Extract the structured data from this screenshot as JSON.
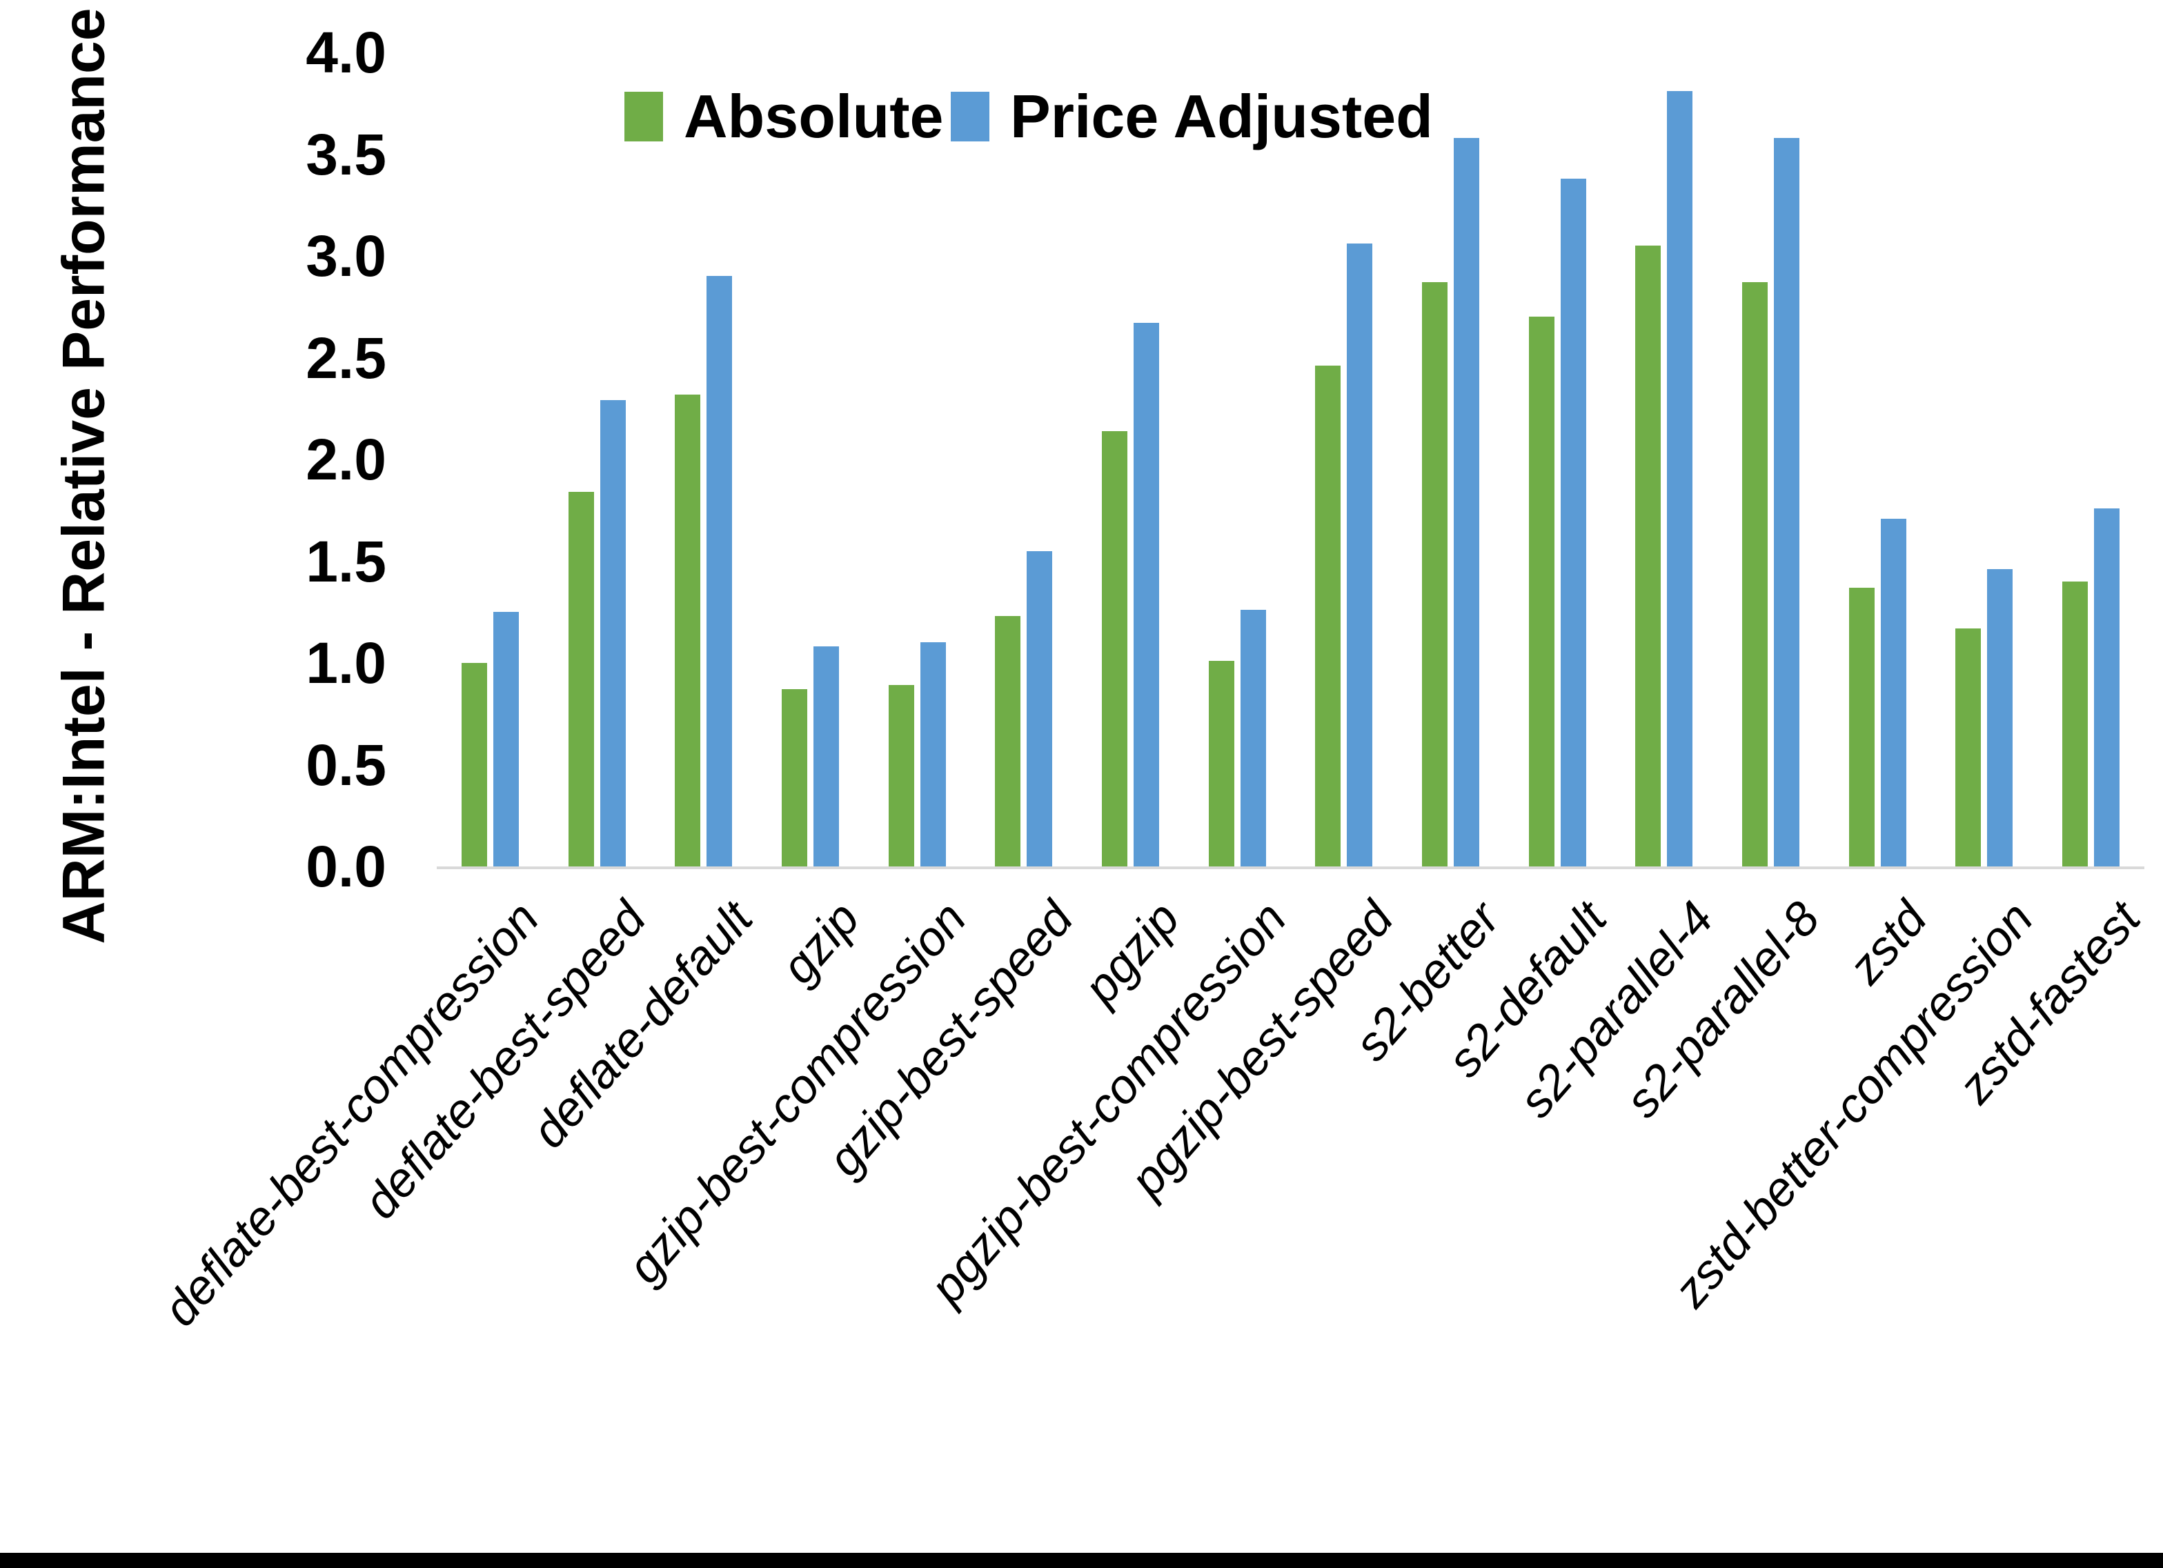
{
  "figure": {
    "bottom_border_color": "#000000",
    "axis_line_color": "#d9d9d9",
    "background": "#ffffff"
  },
  "legend": {
    "absolute_label": "Absolute",
    "price_adjusted_label": "Price Adjusted"
  },
  "chart_data": {
    "type": "bar",
    "title": "",
    "xlabel": "",
    "ylabel": "ARM:Intel - Relative Performance",
    "ylim": [
      0.0,
      4.0
    ],
    "ytick_step": 0.5,
    "ytick_labels": [
      "0.0",
      "0.5",
      "1.0",
      "1.5",
      "2.0",
      "2.5",
      "3.0",
      "3.5",
      "4.0"
    ],
    "grid": false,
    "legend_position": "top-center",
    "categories": [
      "deflate-best-compression",
      "deflate-best-speed",
      "deflate-default",
      "gzip",
      "gzip-best-compression",
      "gzip-best-speed",
      "pgzip",
      "pgzip-best-compression",
      "pgzip-best-speed",
      "s2-better",
      "s2-default",
      "s2-parallel-4",
      "s2-parallel-8",
      "zstd",
      "zstd-better-compression",
      "zstd-fastest"
    ],
    "series": [
      {
        "name": "Absolute",
        "color": "#70AD47",
        "values": [
          1.0,
          1.84,
          2.32,
          0.87,
          0.89,
          1.23,
          2.14,
          1.01,
          2.46,
          2.87,
          2.7,
          3.05,
          2.87,
          1.37,
          1.17,
          1.4
        ]
      },
      {
        "name": "Price Adjusted",
        "color": "#5B9BD5",
        "values": [
          1.25,
          2.29,
          2.9,
          1.08,
          1.1,
          1.55,
          2.67,
          1.26,
          3.06,
          3.58,
          3.38,
          3.81,
          3.58,
          1.71,
          1.46,
          1.76
        ]
      }
    ]
  }
}
